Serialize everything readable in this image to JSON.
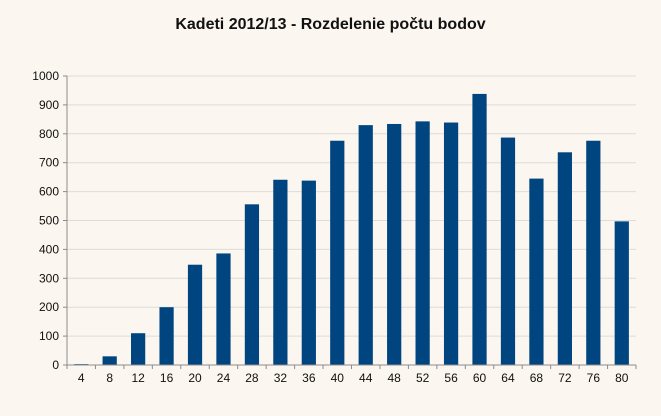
{
  "chart_data": {
    "type": "bar",
    "title": "Kadeti 2012/13 - Rozdelenie počtu bodov",
    "xlabel": "",
    "ylabel": "",
    "categories": [
      "4",
      "8",
      "12",
      "16",
      "20",
      "24",
      "28",
      "32",
      "36",
      "40",
      "44",
      "48",
      "52",
      "56",
      "60",
      "64",
      "68",
      "72",
      "76",
      "80"
    ],
    "values": [
      3,
      30,
      110,
      200,
      347,
      386,
      556,
      641,
      638,
      776,
      830,
      834,
      843,
      839,
      938,
      787,
      645,
      736,
      776,
      497
    ],
    "ylim": [
      0,
      1000
    ],
    "yticks": [
      "0",
      "100",
      "200",
      "300",
      "400",
      "500",
      "600",
      "700",
      "800",
      "900",
      "1000"
    ],
    "grid": true,
    "legend": "none",
    "colors": {
      "bar": "#00457f",
      "background": "#fbf6ef",
      "grid": "#dcdcdc",
      "axis": "#8c8c8c"
    }
  }
}
